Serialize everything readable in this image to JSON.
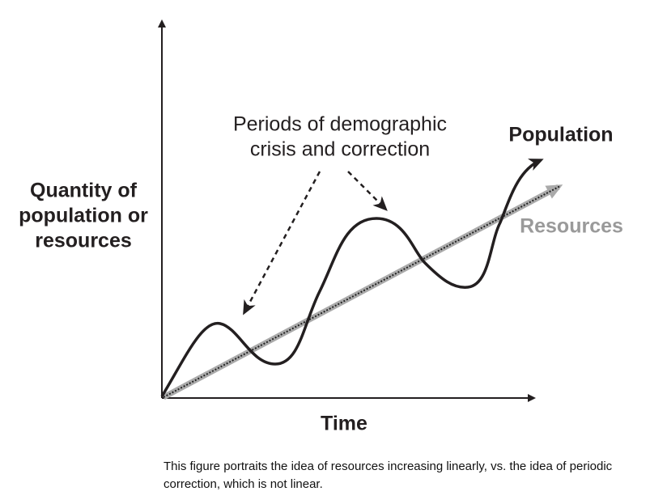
{
  "y_axis_label": [
    "Quantity of",
    "population or",
    "resources"
  ],
  "x_axis_label": "Time",
  "annotation": [
    "Periods of demographic",
    "crisis and correction"
  ],
  "population_label": "Population",
  "resources_label": "Resources",
  "caption": "This figure portraits the idea of resources increasing linearly, vs. the idea of periodic correction, which is not linear."
}
